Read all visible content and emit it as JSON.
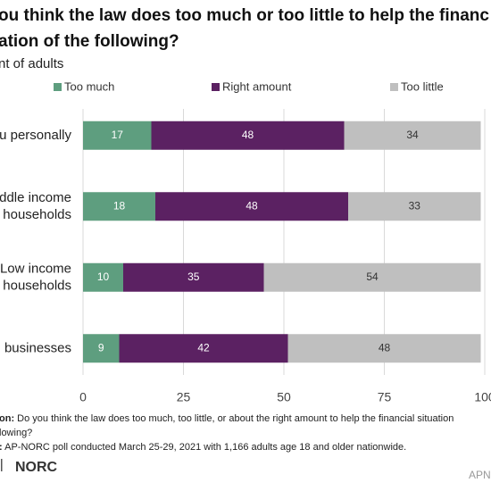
{
  "chart_data": {
    "type": "stacked_hbar",
    "title_lines": [
      "ou think the law does too much or too little to help the financ",
      "ation of the following?"
    ],
    "subtitle": "nt of adults",
    "categories": [
      "u personally",
      "ddle income\nhouseholds",
      "Low income\nhouseholds",
      "l businesses"
    ],
    "series": [
      {
        "name": "Too much",
        "color": "#5e9e7f",
        "label_color": "#ffffff",
        "values": [
          17,
          18,
          10,
          9
        ]
      },
      {
        "name": "Right amount",
        "color": "#5b2162",
        "label_color": "#ffffff",
        "values": [
          48,
          48,
          35,
          42
        ]
      },
      {
        "name": "Too little",
        "color": "#bfbfbf",
        "label_color": "#333333",
        "values": [
          34,
          33,
          54,
          48
        ]
      }
    ],
    "xlim": [
      0,
      100
    ],
    "xticks": [
      0,
      25,
      50,
      75,
      100
    ],
    "notes": [
      {
        "lead": "on:",
        "text": " Do you think the law does too much, too little, or about the right amount to help the financial situation"
      },
      {
        "lead": "",
        "text": "lowing?"
      },
      {
        "lead": ":",
        "text": " AP-NORC poll conducted March 25-29, 2021 with 1,166 adults age 18 and older nationwide."
      }
    ],
    "logo": "NORC",
    "logo_right": "APN"
  }
}
